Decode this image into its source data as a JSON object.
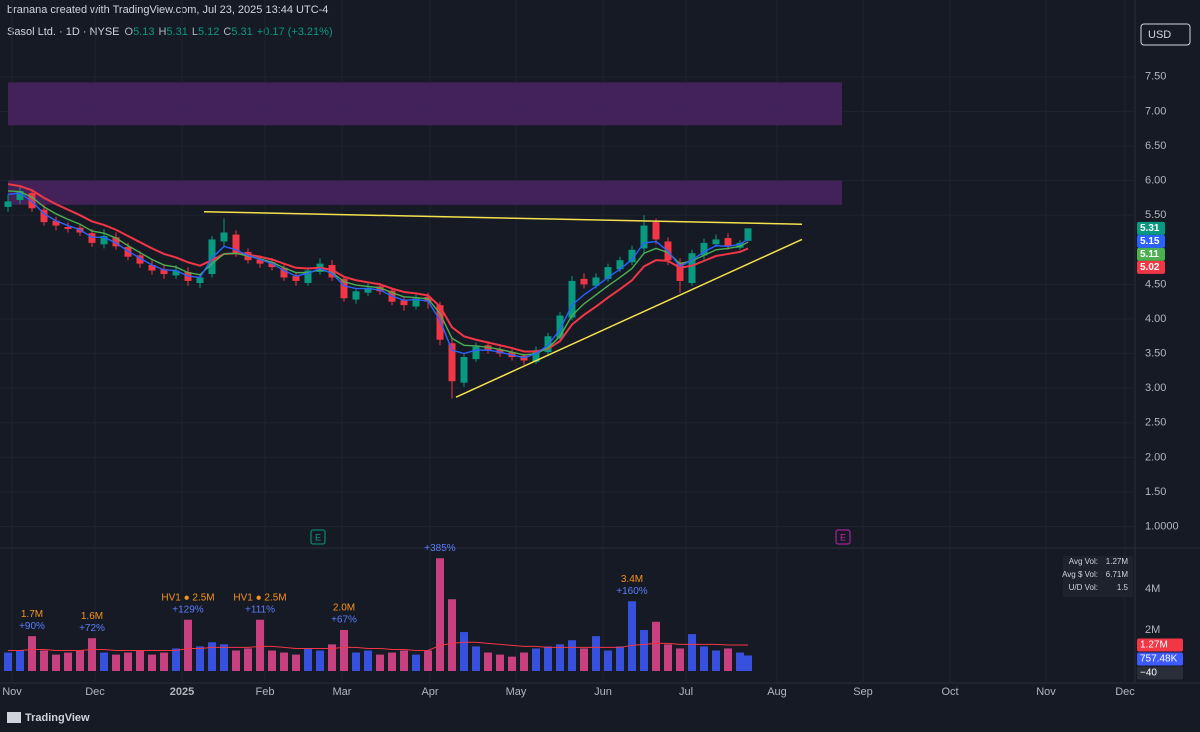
{
  "header": {
    "attribution": "branana created with TradingView.com, Jul 23, 2025 13:44 UTC-4",
    "symbol": "Sasol Ltd. · 1D · NYSE",
    "ohlc_labels": [
      "O",
      "H",
      "L",
      "C"
    ],
    "change": "+0.17 (+3.21%)",
    "currency": "USD"
  },
  "footer": {
    "brand": "TradingView"
  },
  "chart_data": [
    {
      "type": "candlestick",
      "x": [
        0,
        3,
        6,
        9,
        12,
        15,
        18,
        21,
        24,
        27,
        30,
        33,
        36,
        39,
        42,
        45,
        48,
        51,
        54,
        57,
        60,
        63,
        66,
        69,
        72,
        75,
        78,
        81,
        84,
        87,
        90,
        93,
        96,
        99,
        102,
        105,
        108,
        111,
        114,
        117,
        120,
        123,
        126,
        129,
        132,
        135,
        138,
        141,
        144,
        147,
        150,
        153,
        156,
        159,
        162,
        165,
        168,
        171,
        174,
        177,
        180,
        183,
        185
      ],
      "open": [
        5.62,
        5.72,
        5.82,
        5.58,
        5.42,
        5.33,
        5.32,
        5.24,
        5.08,
        5.18,
        5.04,
        4.92,
        4.78,
        4.72,
        4.63,
        4.68,
        4.52,
        4.65,
        5.12,
        5.22,
        4.97,
        4.86,
        4.82,
        4.74,
        4.62,
        4.52,
        4.68,
        4.78,
        4.58,
        4.28,
        4.38,
        4.47,
        4.41,
        4.27,
        4.18,
        4.32,
        4.2,
        3.65,
        3.08,
        3.42,
        3.62,
        3.56,
        3.52,
        3.47,
        3.38,
        3.52,
        3.72,
        4.02,
        4.58,
        4.48,
        4.58,
        4.72,
        4.82,
        5.02,
        5.4,
        5.12,
        4.82,
        4.52,
        4.92,
        5.08,
        5.17,
        5.03,
        5.13
      ],
      "high": [
        5.8,
        5.92,
        5.88,
        5.65,
        5.48,
        5.4,
        5.38,
        5.3,
        5.3,
        5.25,
        5.1,
        4.98,
        4.85,
        4.78,
        4.78,
        4.75,
        4.65,
        5.2,
        5.45,
        5.28,
        5.02,
        4.92,
        4.88,
        4.8,
        4.68,
        4.75,
        4.88,
        4.85,
        4.62,
        4.45,
        4.52,
        4.52,
        4.45,
        4.32,
        4.36,
        4.38,
        4.25,
        3.72,
        3.5,
        3.66,
        3.68,
        3.6,
        3.56,
        3.5,
        3.6,
        3.8,
        4.1,
        4.62,
        4.66,
        4.66,
        4.8,
        4.9,
        5.06,
        5.5,
        5.45,
        5.18,
        4.88,
        5.0,
        5.16,
        5.22,
        5.24,
        5.14,
        5.31
      ],
      "low": [
        5.55,
        5.66,
        5.55,
        5.35,
        5.28,
        5.25,
        5.2,
        5.04,
        5.02,
        5.0,
        4.85,
        4.74,
        4.64,
        4.58,
        4.58,
        4.48,
        4.45,
        4.6,
        5.05,
        4.9,
        4.8,
        4.74,
        4.7,
        4.55,
        4.48,
        4.48,
        4.64,
        4.55,
        4.25,
        4.22,
        4.33,
        4.35,
        4.2,
        4.12,
        4.14,
        4.15,
        3.62,
        2.85,
        3.02,
        3.38,
        3.5,
        3.45,
        3.4,
        3.34,
        3.35,
        3.48,
        3.68,
        3.98,
        4.44,
        4.44,
        4.54,
        4.68,
        4.78,
        4.96,
        5.08,
        4.78,
        4.38,
        4.48,
        4.86,
        5.04,
        5.0,
        5.0,
        5.12
      ],
      "close": [
        5.7,
        5.85,
        5.6,
        5.4,
        5.35,
        5.3,
        5.25,
        5.1,
        5.2,
        5.05,
        4.9,
        4.8,
        4.7,
        4.65,
        4.7,
        4.55,
        4.6,
        5.15,
        5.25,
        4.95,
        4.85,
        4.8,
        4.75,
        4.6,
        4.55,
        4.7,
        4.8,
        4.6,
        4.3,
        4.4,
        4.45,
        4.4,
        4.25,
        4.2,
        4.3,
        4.25,
        3.7,
        3.1,
        3.45,
        3.6,
        3.55,
        3.5,
        3.45,
        3.4,
        3.55,
        3.75,
        4.05,
        4.55,
        4.5,
        4.6,
        4.75,
        4.85,
        5.0,
        5.35,
        5.15,
        4.85,
        4.55,
        4.95,
        5.1,
        5.15,
        5.05,
        5.1,
        5.31
      ],
      "up_color": "#089981",
      "down_color": "#f23645",
      "series": [
        {
          "color": "#f23645",
          "values": [
            5.95,
            5.92,
            5.86,
            5.75,
            5.66,
            5.58,
            5.5,
            5.41,
            5.36,
            5.29,
            5.2,
            5.11,
            5.02,
            4.94,
            4.89,
            4.82,
            4.77,
            4.85,
            4.94,
            4.95,
            4.93,
            4.9,
            4.86,
            4.8,
            4.74,
            4.73,
            4.74,
            4.71,
            4.61,
            4.56,
            4.53,
            4.5,
            4.44,
            4.39,
            4.37,
            4.34,
            4.18,
            3.88,
            3.75,
            3.7,
            3.66,
            3.62,
            3.58,
            3.53,
            3.53,
            3.57,
            3.68,
            3.92,
            4.06,
            4.18,
            4.31,
            4.43,
            4.56,
            4.76,
            4.85,
            4.84,
            4.74,
            4.77,
            4.84,
            4.91,
            4.94,
            4.97,
            5.02
          ]
        },
        {
          "color": "#4caf50",
          "values": [
            5.85,
            5.84,
            5.76,
            5.62,
            5.52,
            5.44,
            5.37,
            5.27,
            5.24,
            5.17,
            5.06,
            4.96,
            4.86,
            4.78,
            4.75,
            4.67,
            4.64,
            4.8,
            4.94,
            4.95,
            4.91,
            4.87,
            4.82,
            4.74,
            4.67,
            4.67,
            4.71,
            4.67,
            4.54,
            4.49,
            4.47,
            4.45,
            4.38,
            4.32,
            4.31,
            4.29,
            4.08,
            3.72,
            3.62,
            3.61,
            3.59,
            3.56,
            3.52,
            3.48,
            3.5,
            3.58,
            3.75,
            4.05,
            4.22,
            4.35,
            4.48,
            4.6,
            4.73,
            4.95,
            5.02,
            4.96,
            4.8,
            4.84,
            4.92,
            5.0,
            5.02,
            5.05,
            5.11
          ]
        },
        {
          "color": "#2962ff",
          "values": [
            5.8,
            5.82,
            5.7,
            5.52,
            5.42,
            5.35,
            5.29,
            5.18,
            5.18,
            5.1,
            4.98,
            4.88,
            4.78,
            4.71,
            4.7,
            4.62,
            4.6,
            4.88,
            5.05,
            5.0,
            4.92,
            4.86,
            4.8,
            4.7,
            4.62,
            4.66,
            4.73,
            4.66,
            4.48,
            4.44,
            4.44,
            4.42,
            4.33,
            4.27,
            4.28,
            4.26,
            3.98,
            3.55,
            3.5,
            3.55,
            3.55,
            3.52,
            3.48,
            3.44,
            3.5,
            3.62,
            3.85,
            4.2,
            4.35,
            4.47,
            4.6,
            4.72,
            4.86,
            5.1,
            5.12,
            4.98,
            4.76,
            4.85,
            4.97,
            5.06,
            5.05,
            5.08,
            5.15
          ]
        }
      ],
      "zones": [
        {
          "color": "#4a2462",
          "x": [
            0,
            208.5
          ],
          "y": [
            6.8,
            7.42
          ]
        },
        {
          "color": "#4a2462",
          "x": [
            0,
            208.5
          ],
          "y": [
            5.65,
            6.0
          ]
        }
      ],
      "trendlines": {
        "color": "#f5e14b",
        "lines": [
          {
            "x": [
              49,
              198.5
            ],
            "y": [
              5.55,
              5.37
            ]
          },
          {
            "x": [
              112,
              198.5
            ],
            "y": [
              2.87,
              5.15
            ]
          }
        ]
      },
      "earnings": [
        {
          "x": 77.5,
          "label": "E",
          "color": "#089981"
        },
        {
          "x": 208.75,
          "label": "E",
          "color": "#c724b1"
        }
      ],
      "xlim": [
        0,
        280.5
      ],
      "xticks": [
        {
          "value": 1,
          "label": "Nov"
        },
        {
          "value": 21.75,
          "label": "Dec"
        },
        {
          "value": 43.5,
          "label": "2025"
        },
        {
          "value": 64.25,
          "label": "Feb"
        },
        {
          "value": 83.5,
          "label": "Mar"
        },
        {
          "value": 105.5,
          "label": "Apr"
        },
        {
          "value": 127,
          "label": "May"
        },
        {
          "value": 148.75,
          "label": "Jun"
        },
        {
          "value": 169.5,
          "label": "Jul"
        },
        {
          "value": 192.25,
          "label": "Aug"
        },
        {
          "value": 213.75,
          "label": "Sep"
        },
        {
          "value": 235.5,
          "label": "Oct"
        },
        {
          "value": 259.5,
          "label": "Nov"
        },
        {
          "value": 279.25,
          "label": "Dec"
        }
      ],
      "ylim": [
        0.69,
        7.96
      ],
      "yticks": [
        {
          "value": 7.5,
          "label": "7.50"
        },
        {
          "value": 7,
          "label": "7.00"
        },
        {
          "value": 6.5,
          "label": "6.50"
        },
        {
          "value": 6,
          "label": "6.00"
        },
        {
          "value": 5.5,
          "label": "5.50"
        },
        {
          "value": 4.5,
          "label": "4.50"
        },
        {
          "value": 4,
          "label": "4.00"
        },
        {
          "value": 3.5,
          "label": "3.50"
        },
        {
          "value": 3,
          "label": "3.00"
        },
        {
          "value": 2.5,
          "label": "2.50"
        },
        {
          "value": 2,
          "label": "2.00"
        },
        {
          "value": 1.5,
          "label": "1.50"
        },
        {
          "value": 1,
          "label": "1.0000"
        }
      ],
      "grid": true
    },
    {
      "type": "bar",
      "x": [
        0,
        3,
        6,
        9,
        12,
        15,
        18,
        21,
        24,
        27,
        30,
        33,
        36,
        39,
        42,
        45,
        48,
        51,
        54,
        57,
        60,
        63,
        66,
        69,
        72,
        75,
        78,
        81,
        84,
        87,
        90,
        93,
        96,
        99,
        102,
        105,
        108,
        111,
        114,
        117,
        120,
        123,
        126,
        129,
        132,
        135,
        138,
        141,
        144,
        147,
        150,
        153,
        156,
        159,
        162,
        165,
        168,
        171,
        174,
        177,
        180,
        183,
        185
      ],
      "values": [
        900000,
        1000000,
        1700000,
        1000000,
        800000,
        900000,
        1000000,
        1600000,
        900000,
        800000,
        900000,
        1000000,
        800000,
        900000,
        1100000,
        2500000,
        1200000,
        1400000,
        1300000,
        1000000,
        1100000,
        2500000,
        1000000,
        900000,
        800000,
        1100000,
        1000000,
        1300000,
        2000000,
        900000,
        1000000,
        800000,
        900000,
        1000000,
        800000,
        1000000,
        5500000,
        3500000,
        1900000,
        1200000,
        900000,
        800000,
        700000,
        900000,
        1100000,
        1200000,
        1300000,
        1500000,
        1100000,
        1700000,
        1000000,
        1200000,
        3400000,
        2000000,
        2400000,
        1300000,
        1100000,
        1800000,
        1200000,
        1000000,
        1100000,
        900000,
        757480
      ],
      "last_value_label": "757.48K",
      "up_color": "#3d5afe",
      "down_color": "#e8488f",
      "moving_average": {
        "color": "#f23645",
        "values": [
          1000000,
          1000000,
          1050000,
          1050000,
          1000000,
          1000000,
          1000000,
          1050000,
          1050000,
          1000000,
          1000000,
          1000000,
          1000000,
          1000000,
          1000000,
          1100000,
          1100000,
          1150000,
          1150000,
          1150000,
          1150000,
          1200000,
          1200000,
          1150000,
          1100000,
          1100000,
          1100000,
          1100000,
          1150000,
          1150000,
          1100000,
          1100000,
          1050000,
          1050000,
          1000000,
          1000000,
          1250000,
          1350000,
          1400000,
          1400000,
          1350000,
          1300000,
          1250000,
          1200000,
          1200000,
          1150000,
          1150000,
          1150000,
          1150000,
          1150000,
          1150000,
          1150000,
          1250000,
          1300000,
          1350000,
          1350000,
          1300000,
          1300000,
          1300000,
          1300000,
          1270000,
          1270000,
          1270000
        ],
        "last_value_label": "1.27M"
      },
      "extra_scale_label": "−40",
      "annotations": [
        {
          "x": 6,
          "label": "1.7M",
          "change": "+90%"
        },
        {
          "x": 21,
          "label": "1.6M",
          "change": "+72%"
        },
        {
          "x": 45,
          "label": "HV1 ● 2.5M",
          "change": "+129%"
        },
        {
          "x": 63,
          "label": "HV1 ● 2.5M",
          "change": "+111%"
        },
        {
          "x": 84,
          "label": "2.0M",
          "change": "+67%"
        },
        {
          "x": 108,
          "change": "+385%"
        },
        {
          "x": 156,
          "label": "3.4M",
          "change": "+160%"
        }
      ],
      "stats": [
        {
          "label": "Avg Vol:",
          "value": "1.27M"
        },
        {
          "label": "Avg $ Vol:",
          "value": "6.71M"
        },
        {
          "label": "U/D Vol:",
          "value": "1.5"
        }
      ],
      "ylim": [
        -585000,
        6000000
      ],
      "yticks": [
        {
          "value": 4000000,
          "label": "4M"
        },
        {
          "value": 2000000,
          "label": "2M"
        }
      ]
    }
  ]
}
